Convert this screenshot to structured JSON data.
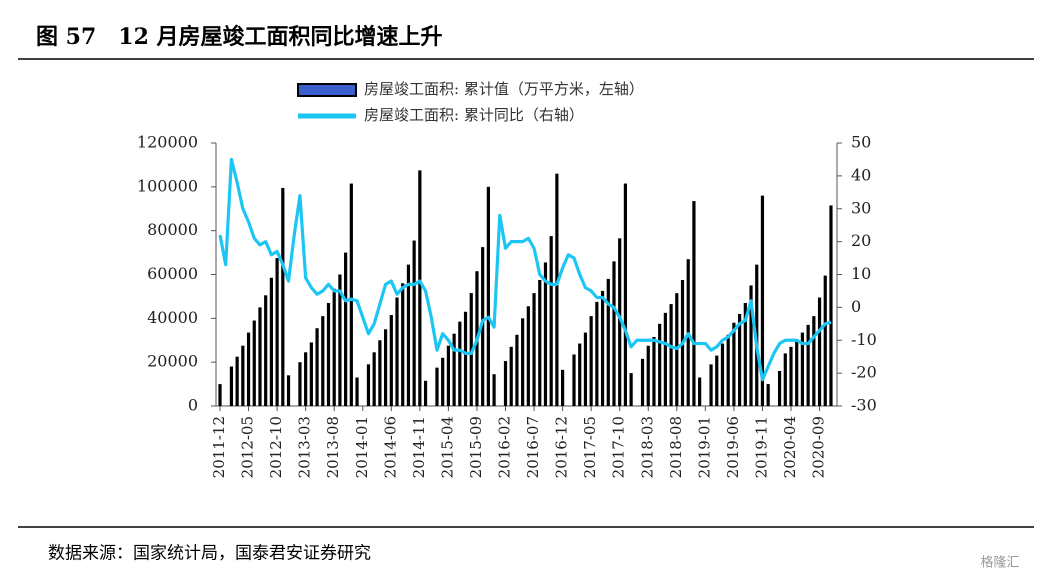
{
  "chart_data": {
    "type": "bar_line",
    "title": "图 57　12 月房屋竣工面积同比增速上升",
    "source": "数据来源：国家统计局，国泰君安证券研究",
    "watermark": "格隆汇",
    "categories": [
      "2011-12",
      null,
      null,
      null,
      null,
      "2012-05",
      null,
      null,
      null,
      null,
      "2012-10",
      null,
      null,
      null,
      null,
      "2013-03",
      null,
      null,
      null,
      null,
      "2013-08",
      null,
      null,
      null,
      null,
      "2014-01",
      null,
      null,
      null,
      null,
      "2014-06",
      null,
      null,
      null,
      null,
      "2014-11",
      null,
      null,
      null,
      null,
      "2015-04",
      null,
      null,
      null,
      null,
      "2015-09",
      null,
      null,
      null,
      null,
      "2016-02",
      null,
      null,
      null,
      null,
      "2016-07",
      null,
      null,
      null,
      null,
      "2016-12",
      null,
      null,
      null,
      null,
      "2017-05",
      null,
      null,
      null,
      null,
      "2017-10",
      null,
      null,
      null,
      null,
      "2018-03",
      null,
      null,
      null,
      null,
      "2018-08",
      null,
      null,
      null,
      null,
      "2019-01",
      null,
      null,
      null,
      null,
      "2019-06",
      null,
      null,
      null,
      null,
      "2019-11",
      null,
      null,
      null,
      null,
      "2020-04",
      null,
      null,
      null,
      null,
      "2020-09",
      null,
      null
    ],
    "series": [
      {
        "name": "房屋竣工面积: 累计值（万平方米，左轴）",
        "type": "bar",
        "color": "#000000",
        "legend_color": "#3a5fcd",
        "values": [
          10000,
          null,
          18000,
          22500,
          27500,
          33500,
          39000,
          45000,
          50500,
          58500,
          67500,
          99500,
          14000,
          null,
          20000,
          24500,
          29000,
          35500,
          41000,
          47000,
          53500,
          60000,
          70000,
          101500,
          13000,
          null,
          19000,
          24500,
          30000,
          35000,
          41500,
          49500,
          56000,
          64500,
          75500,
          107500,
          11500,
          null,
          17500,
          22000,
          27500,
          33000,
          38500,
          43000,
          51500,
          61500,
          72500,
          100000,
          14500,
          null,
          20500,
          27000,
          32500,
          40000,
          45500,
          51500,
          57500,
          65500,
          77500,
          106000,
          16500,
          null,
          23500,
          28500,
          33500,
          41000,
          47500,
          52500,
          58000,
          66000,
          76500,
          101500,
          15000,
          null,
          21500,
          27500,
          31500,
          37500,
          42500,
          46500,
          51500,
          57500,
          67000,
          93500,
          13000,
          null,
          19000,
          23000,
          28500,
          32500,
          38000,
          42000,
          47000,
          55000,
          64500,
          96000,
          10000,
          null,
          16000,
          24000,
          27000,
          29500,
          33500,
          37000,
          41000,
          49500,
          59500,
          91500
        ]
      },
      {
        "name": "房屋竣工面积: 累计同比（右轴）",
        "type": "line",
        "axis": "y2",
        "color": "#1cc6f4",
        "values": [
          22,
          13,
          45,
          38,
          30,
          26,
          21,
          19,
          20,
          16,
          17,
          13,
          8,
          22,
          34,
          9,
          6,
          4,
          5,
          7,
          5,
          5,
          2,
          2.5,
          2,
          -3,
          -8,
          -5,
          1,
          7,
          8,
          4,
          6,
          7,
          7,
          8,
          5,
          -3,
          -13,
          -8,
          -10,
          -13,
          -13,
          -14,
          -14,
          -10,
          -4,
          -3,
          -6,
          28,
          18,
          20,
          20,
          20,
          21,
          18,
          10,
          8,
          7,
          7,
          12,
          16,
          15,
          10,
          6,
          5,
          3,
          3,
          1,
          0,
          -3,
          -7,
          -12,
          -10,
          -10,
          -10,
          -10,
          -10.5,
          -11,
          -12,
          -12.5,
          -11,
          -8,
          -11,
          -11,
          -11,
          -13,
          -12,
          -10,
          -9,
          -7,
          -5,
          -4,
          2,
          -12,
          -22,
          -18,
          -14,
          -11,
          -10,
          -10,
          -10,
          -11,
          -11,
          -9,
          -7,
          -5,
          -4.5
        ]
      }
    ],
    "ylim": [
      0,
      120000
    ],
    "yticks": [
      0,
      20000,
      40000,
      60000,
      80000,
      100000,
      120000
    ],
    "y2lim": [
      -30,
      50
    ],
    "y2ticks": [
      -30,
      -20,
      -10,
      0,
      10,
      20,
      30,
      40,
      50
    ],
    "legend": "top"
  }
}
